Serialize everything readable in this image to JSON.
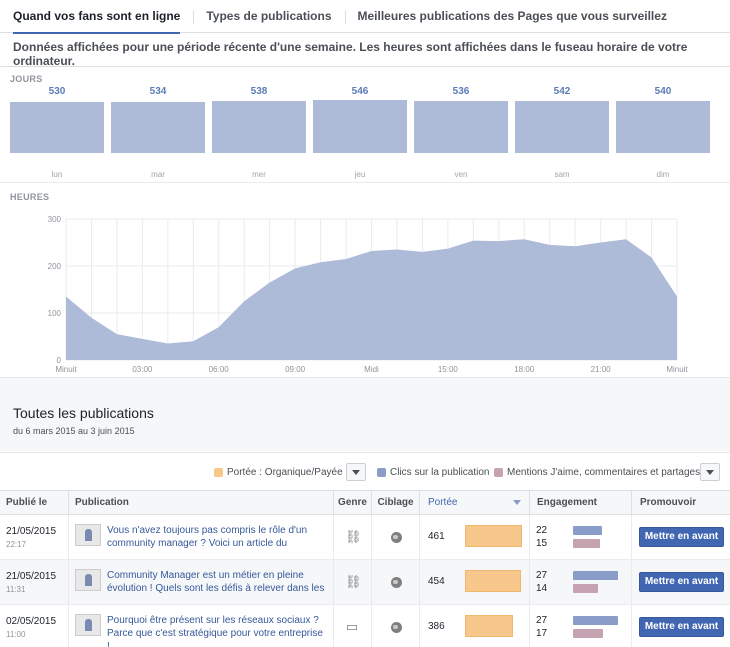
{
  "tabs": [
    {
      "label": "Quand vos fans sont en ligne",
      "active": true
    },
    {
      "label": "Types de publications",
      "active": false
    },
    {
      "label": "Meilleures publications des Pages que vous surveillez",
      "active": false
    }
  ],
  "notice": "Données affichées pour une période récente d'une semaine. Les heures sont affichées dans le fuseau horaire de votre ordinateur.",
  "days_section": {
    "label": "JOURS",
    "days": [
      {
        "name": "lun",
        "value": 530
      },
      {
        "name": "mar",
        "value": 534
      },
      {
        "name": "mer",
        "value": 538
      },
      {
        "name": "jeu",
        "value": 546
      },
      {
        "name": "ven",
        "value": 536
      },
      {
        "name": "sam",
        "value": 542
      },
      {
        "name": "dim",
        "value": 540
      }
    ]
  },
  "hours_section": {
    "label": "HEURES"
  },
  "chart_data": [
    {
      "type": "bar",
      "categories": [
        "lun",
        "mar",
        "mer",
        "jeu",
        "ven",
        "sam",
        "dim"
      ],
      "values": [
        530,
        534,
        538,
        546,
        536,
        542,
        540
      ],
      "title": "JOURS"
    },
    {
      "type": "area",
      "title": "HEURES",
      "x": [
        0,
        1,
        2,
        3,
        4,
        5,
        6,
        7,
        8,
        9,
        10,
        11,
        12,
        13,
        14,
        15,
        16,
        17,
        18,
        19,
        20,
        21,
        22,
        23,
        24
      ],
      "values": [
        135,
        90,
        55,
        45,
        35,
        40,
        70,
        125,
        165,
        195,
        208,
        215,
        232,
        235,
        230,
        237,
        254,
        253,
        257,
        245,
        242,
        250,
        257,
        218,
        135
      ],
      "ylim": [
        0,
        300
      ],
      "yticks": [
        "0",
        "100",
        "200",
        "300"
      ],
      "xtick_labels": [
        "Minuit",
        "03:00",
        "06:00",
        "09:00",
        "Midi",
        "15:00",
        "18:00",
        "21:00",
        "Minuit"
      ],
      "grid": true,
      "color": "#aebbd8"
    }
  ],
  "publications": {
    "title": "Toutes les publications",
    "range": "du 6 mars 2015 au 3 juin 2015",
    "legend": [
      {
        "label": "Portée : Organique/Payée",
        "color": "#f7c78c"
      },
      {
        "label": "Clics sur la publication",
        "color": "#8a9dc8"
      },
      {
        "label": "Mentions J'aime, commentaires et partages",
        "color": "#c5a3b0"
      }
    ],
    "columns": {
      "published": "Publié le",
      "publication": "Publication",
      "type": "Genre",
      "targeting": "Ciblage",
      "reach": "Portée",
      "engagement": "Engagement",
      "promote": "Promouvoir"
    },
    "rows": [
      {
        "date": "21/05/2015",
        "time": "22:17",
        "text": "Vous n'avez toujours pas compris le rôle d'un community manager ? Voici un article du",
        "type_icon": "link-icon",
        "reach": "461",
        "clicks": "22",
        "likes": "15",
        "promote": "Mettre en avant"
      },
      {
        "date": "21/05/2015",
        "time": "11:31",
        "text": "Community Manager est un métier en pleine évolution ! Quels sont les défis à relever dans les",
        "type_icon": "link-icon",
        "reach": "454",
        "clicks": "27",
        "likes": "14",
        "promote": "Mettre en avant"
      },
      {
        "date": "02/05/2015",
        "time": "11:00",
        "text": "Pourquoi être présent sur les réseaux sociaux ? Parce que c'est stratégique pour votre entreprise !",
        "type_icon": "photo-icon",
        "reach": "386",
        "clicks": "27",
        "likes": "17",
        "promote": "Mettre en avant"
      }
    ]
  }
}
